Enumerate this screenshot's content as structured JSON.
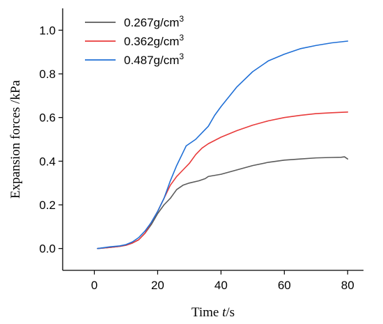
{
  "chart_data": {
    "type": "line",
    "xlabel_parts": [
      "Time ",
      "t",
      "/s"
    ],
    "ylabel": "Expansion forces /kPa",
    "xlim": [
      -10,
      85
    ],
    "ylim": [
      -0.1,
      1.1
    ],
    "xticks": [
      0,
      20,
      40,
      60,
      80
    ],
    "yticks": [
      0.0,
      0.2,
      0.4,
      0.6,
      0.8,
      1.0
    ],
    "xtick_labels": [
      "0",
      "20",
      "40",
      "60",
      "80"
    ],
    "ytick_labels": [
      "0.0",
      "0.2",
      "0.4",
      "0.6",
      "0.8",
      "1.0"
    ],
    "legend_position": "top-left",
    "series": [
      {
        "name_base": "0.267g/cm",
        "name_sup": "3",
        "color": "#5a5a5a",
        "x": [
          1,
          5,
          8,
          10,
          12,
          14,
          16,
          18,
          20,
          22,
          24,
          25,
          26,
          28,
          30,
          33,
          35,
          36,
          40,
          45,
          50,
          55,
          60,
          65,
          70,
          75,
          78,
          79,
          80
        ],
        "y": [
          0.0,
          0.005,
          0.01,
          0.015,
          0.025,
          0.04,
          0.07,
          0.11,
          0.16,
          0.2,
          0.23,
          0.25,
          0.27,
          0.29,
          0.3,
          0.31,
          0.32,
          0.33,
          0.34,
          0.36,
          0.38,
          0.395,
          0.405,
          0.41,
          0.415,
          0.417,
          0.418,
          0.42,
          0.41
        ]
      },
      {
        "name_base": "0.362g/cm",
        "name_sup": "3",
        "color": "#e83a3a",
        "x": [
          1,
          5,
          8,
          10,
          12,
          14,
          16,
          18,
          20,
          22,
          24,
          26,
          28,
          30,
          32,
          34,
          36,
          40,
          45,
          50,
          55,
          60,
          65,
          70,
          75,
          80
        ],
        "y": [
          0.0,
          0.005,
          0.01,
          0.015,
          0.025,
          0.04,
          0.07,
          0.12,
          0.17,
          0.23,
          0.29,
          0.33,
          0.36,
          0.39,
          0.43,
          0.46,
          0.48,
          0.51,
          0.54,
          0.565,
          0.585,
          0.6,
          0.61,
          0.618,
          0.622,
          0.625
        ]
      },
      {
        "name_base": "0.487g/cm",
        "name_sup": "3",
        "color": "#1f6fd6",
        "x": [
          1,
          5,
          8,
          10,
          12,
          14,
          16,
          18,
          20,
          22,
          24,
          26,
          28,
          29,
          30,
          32,
          34,
          36,
          38,
          40,
          45,
          50,
          55,
          60,
          65,
          70,
          75,
          80
        ],
        "y": [
          0.0,
          0.008,
          0.012,
          0.018,
          0.03,
          0.05,
          0.08,
          0.12,
          0.17,
          0.23,
          0.31,
          0.38,
          0.44,
          0.47,
          0.48,
          0.5,
          0.53,
          0.56,
          0.61,
          0.65,
          0.74,
          0.81,
          0.86,
          0.89,
          0.915,
          0.93,
          0.942,
          0.95
        ]
      }
    ]
  }
}
